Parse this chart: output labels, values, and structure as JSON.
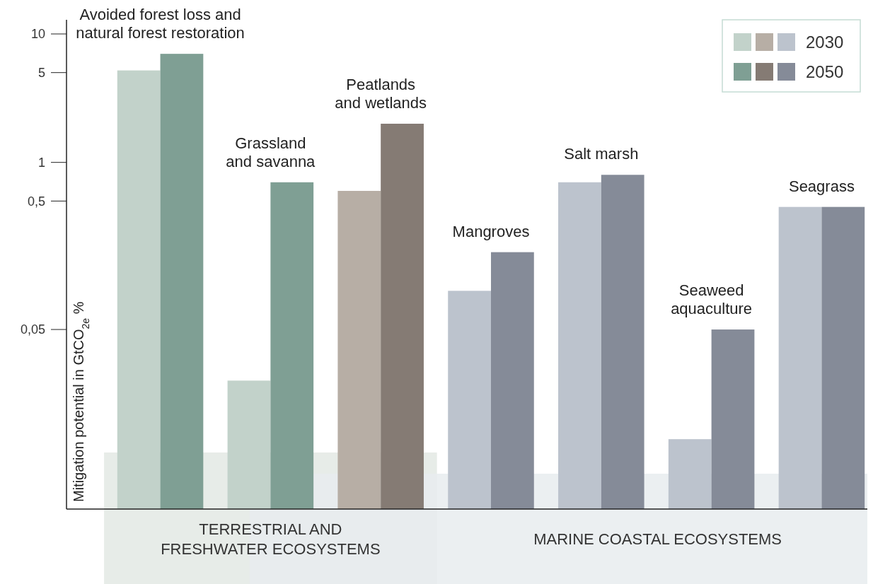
{
  "chart_data": {
    "type": "bar",
    "ylabel": "Mitigation potential in GtCO$_{2e}$ %",
    "categories": [
      "Avoided forest loss and\nnatural forest restoration",
      "Grassland\nand savanna",
      "Peatlands\nand wetlands",
      "Mangroves",
      "Salt marsh",
      "Seaweed\naquaculture",
      "Seagrass"
    ],
    "series": [
      {
        "name": "2030",
        "color": "#c2d2ca",
        "colors": [
          "#c2d2ca",
          "#c2d2ca",
          "#b7aea5",
          "#bcc3cd",
          "#bcc3cd",
          "#bcc3cd",
          "#bcc3cd"
        ],
        "values": [
          5.2,
          0.02,
          0.6,
          0.1,
          0.7,
          0.007,
          0.45
        ]
      },
      {
        "name": "2050",
        "color": "#7f9f94",
        "colors": [
          "#7f9f94",
          "#7f9f94",
          "#857b74",
          "#858b98",
          "#858b98",
          "#858b98",
          "#858b98"
        ],
        "values": [
          7,
          0.7,
          2,
          0.2,
          0.8,
          0.05,
          0.45
        ]
      }
    ],
    "log": true,
    "ylim": [
      0.002,
      10
    ],
    "yticks": [
      {
        "value": 0.05,
        "label": "0,05"
      },
      {
        "value": 0.5,
        "label": "0,5"
      },
      1,
      5,
      10
    ],
    "annotations": [
      "TERRESTRIAL AND\nFRESHWATER ECOSYSTEMS",
      "MARINE COASTAL ECOSYSTEMS"
    ],
    "legend": "top right",
    "grid": false
  }
}
